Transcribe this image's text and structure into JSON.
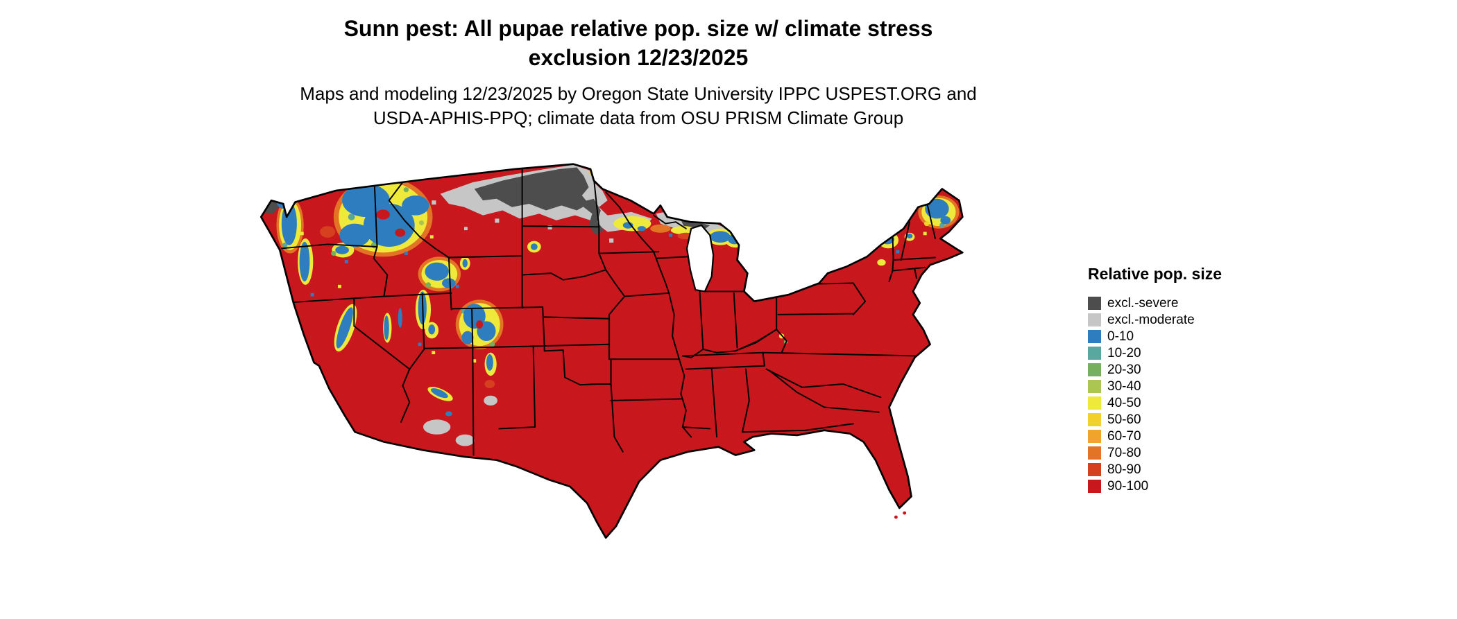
{
  "title": {
    "line1": "Sunn pest: All pupae relative pop. size w/ climate stress",
    "line2": "exclusion 12/23/2025"
  },
  "subtitle": {
    "line1": "Maps and modeling 12/23/2025 by Oregon State University IPPC USPEST.ORG and",
    "line2": "USDA-APHIS-PPQ; climate data from OSU PRISM Climate Group"
  },
  "legend": {
    "title": "Relative pop. size",
    "items": [
      {
        "label": "excl.-severe",
        "color": "#4D4D4D"
      },
      {
        "label": "excl.-moderate",
        "color": "#C6C6C6"
      },
      {
        "label": "0-10",
        "color": "#2E7EBF"
      },
      {
        "label": "10-20",
        "color": "#58A8A0"
      },
      {
        "label": "20-30",
        "color": "#76AF5D"
      },
      {
        "label": "30-40",
        "color": "#ACC751"
      },
      {
        "label": "40-50",
        "color": "#EFE93C"
      },
      {
        "label": "50-60",
        "color": "#F4D02A"
      },
      {
        "label": "60-70",
        "color": "#F0A42B"
      },
      {
        "label": "70-80",
        "color": "#E37425"
      },
      {
        "label": "80-90",
        "color": "#D6401F"
      },
      {
        "label": "90-100",
        "color": "#C8171D"
      }
    ]
  },
  "map": {
    "alt": "Raster map of the continental United States colored by Sunn pest relative population size: mostly red (90-100), gray climate-stress exclusion zones across the northern plains, and blue low-value mountain areas in the West, upper Midwest and Northeast"
  }
}
